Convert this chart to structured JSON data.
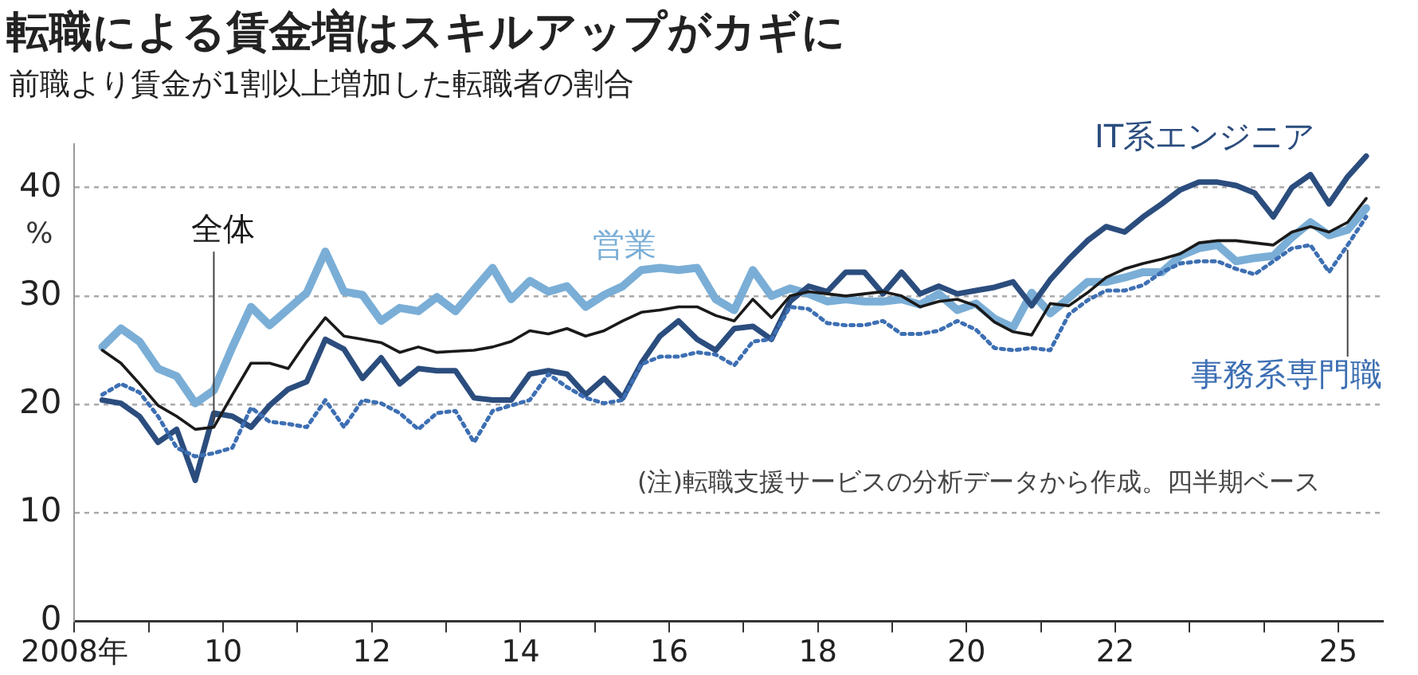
{
  "chart_data": {
    "type": "line",
    "title": "転職による賃金増はスキルアップがカギに",
    "subtitle": "前職より賃金が1割以上増加した転職者の割合",
    "ylabel": "%",
    "x": [
      2008.375,
      2008.625,
      2008.875,
      2009.125,
      2009.375,
      2009.625,
      2009.875,
      2010.125,
      2010.375,
      2010.625,
      2010.875,
      2011.125,
      2011.375,
      2011.625,
      2011.875,
      2012.125,
      2012.375,
      2012.625,
      2012.875,
      2013.125,
      2013.375,
      2013.625,
      2013.875,
      2014.125,
      2014.375,
      2014.625,
      2014.875,
      2015.125,
      2015.375,
      2015.625,
      2015.875,
      2016.125,
      2016.375,
      2016.625,
      2016.875,
      2017.125,
      2017.375,
      2017.625,
      2017.875,
      2018.125,
      2018.375,
      2018.625,
      2018.875,
      2019.125,
      2019.375,
      2019.625,
      2019.875,
      2020.125,
      2020.375,
      2020.625,
      2020.875,
      2021.125,
      2021.375,
      2021.625,
      2021.875,
      2022.125,
      2022.375,
      2022.625,
      2022.875,
      2023.125,
      2023.375,
      2023.625,
      2023.875,
      2024.125,
      2024.375,
      2024.625,
      2024.875,
      2025.125,
      2025.375
    ],
    "series": [
      {
        "name": "営業",
        "color": "#7aaed6",
        "line_style": "solid",
        "values": [
          25.3,
          27,
          25.8,
          23.3,
          22.6,
          20.1,
          21.3,
          25.3,
          29,
          27.3,
          28.8,
          30.3,
          34.1,
          30.4,
          30.1,
          27.7,
          28.9,
          28.6,
          29.9,
          28.6,
          30.6,
          32.6,
          29.7,
          31.4,
          30.4,
          30.9,
          29,
          30.1,
          30.9,
          32.4,
          32.6,
          32.4,
          32.6,
          29.7,
          28.7,
          32.4,
          30,
          30.7,
          30.2,
          29.5,
          29.7,
          29.5,
          29.5,
          29.7,
          29.2,
          30.2,
          28.7,
          29.3,
          27.9,
          27.1,
          30.3,
          28.4,
          29.8,
          31.3,
          31.3,
          31.7,
          32.2,
          32.2,
          33.7,
          34.4,
          34.7,
          33.2,
          33.5,
          33.7,
          35.4,
          36.8,
          35.6,
          36.1,
          38.1
        ]
      },
      {
        "name": "事務系専門職",
        "color": "#3d6fb3",
        "line_style": "dotted",
        "values": [
          20.9,
          21.9,
          21.1,
          18.9,
          16,
          15.2,
          15.5,
          16,
          19.7,
          18.4,
          18.2,
          17.9,
          20.4,
          17.9,
          20.4,
          20.1,
          19.2,
          17.7,
          19.2,
          19.4,
          16.5,
          19.4,
          19.9,
          20.4,
          22.8,
          21.6,
          20.6,
          20.1,
          20.4,
          23.7,
          24.4,
          24.4,
          24.8,
          24.6,
          23.6,
          25.8,
          26,
          29,
          28.8,
          27.5,
          27.3,
          27.3,
          27.7,
          26.5,
          26.5,
          26.8,
          27.7,
          26.9,
          25.2,
          25,
          25.2,
          25,
          28.3,
          29.6,
          30.5,
          30.5,
          31,
          32.2,
          33,
          33.2,
          33.2,
          32.5,
          32,
          33.2,
          34.4,
          34.7,
          32.2,
          34.7,
          37.3
        ]
      },
      {
        "name": "全体",
        "color": "#1a1a1a",
        "line_style": "solid",
        "values": [
          25,
          23.8,
          21.9,
          19.9,
          18.9,
          17.7,
          17.9,
          20.9,
          23.8,
          23.8,
          23.3,
          25.8,
          28,
          26.3,
          26,
          25.7,
          24.8,
          25.3,
          24.8,
          24.9,
          25,
          25.3,
          25.8,
          26.8,
          26.5,
          27,
          26.3,
          26.8,
          27.7,
          28.5,
          28.7,
          29,
          29,
          28.2,
          27.7,
          29.7,
          28,
          30,
          30.4,
          30.2,
          30,
          30.2,
          30.4,
          30,
          29,
          29.5,
          29.7,
          29.1,
          27.6,
          26.7,
          26.4,
          29.3,
          29.1,
          30.3,
          31.7,
          32.5,
          33,
          33.4,
          33.9,
          34.9,
          35.1,
          35.1,
          34.9,
          34.7,
          35.9,
          36.4,
          35.9,
          36.8,
          39
        ]
      },
      {
        "name": "IT系エンジニア",
        "color": "#2b4d7e",
        "line_style": "solid",
        "values": [
          20.4,
          20.1,
          18.9,
          16.5,
          17.7,
          13,
          19.2,
          18.9,
          17.9,
          19.9,
          21.4,
          22.1,
          26,
          25.1,
          22.4,
          24.3,
          21.9,
          23.3,
          23.1,
          23.1,
          20.6,
          20.4,
          20.4,
          22.8,
          23.1,
          22.8,
          20.9,
          22.4,
          20.6,
          23.8,
          26.3,
          27.7,
          26,
          25,
          27,
          27.2,
          26,
          29.5,
          30.9,
          30.4,
          32.2,
          32.2,
          30.2,
          32.2,
          30.2,
          30.9,
          30.2,
          30.5,
          30.8,
          31.3,
          29.1,
          31.5,
          33.4,
          35.1,
          36.4,
          35.9,
          37.3,
          38.5,
          39.8,
          40.5,
          40.5,
          40.2,
          39.5,
          37.3,
          40,
          41.2,
          38.5,
          41,
          42.9
        ]
      }
    ],
    "xlim": [
      2008,
      2025.6
    ],
    "xticks": [
      {
        "value": 2008,
        "label": "2008年"
      },
      {
        "value": 2009,
        "label": null
      },
      {
        "value": 2010,
        "label": "10"
      },
      {
        "value": 2011,
        "label": null
      },
      {
        "value": 2012,
        "label": "12"
      },
      {
        "value": 2013,
        "label": null
      },
      {
        "value": 2014,
        "label": "14"
      },
      {
        "value": 2015,
        "label": null
      },
      {
        "value": 2016,
        "label": "16"
      },
      {
        "value": 2017,
        "label": null
      },
      {
        "value": 2018,
        "label": "18"
      },
      {
        "value": 2019,
        "label": null
      },
      {
        "value": 2020,
        "label": "20"
      },
      {
        "value": 2021,
        "label": null
      },
      {
        "value": 2022,
        "label": "22"
      },
      {
        "value": 2023,
        "label": null
      },
      {
        "value": 2024,
        "label": null
      },
      {
        "value": 2025,
        "label": "25"
      }
    ],
    "ylim": [
      0,
      44
    ],
    "yticks": [
      0,
      10,
      20,
      30,
      40
    ],
    "grid": "y",
    "legend": false,
    "marker": "none",
    "annotations": [
      "(注)転職支援サービスの分析データから作成。四半期ベース"
    ]
  }
}
